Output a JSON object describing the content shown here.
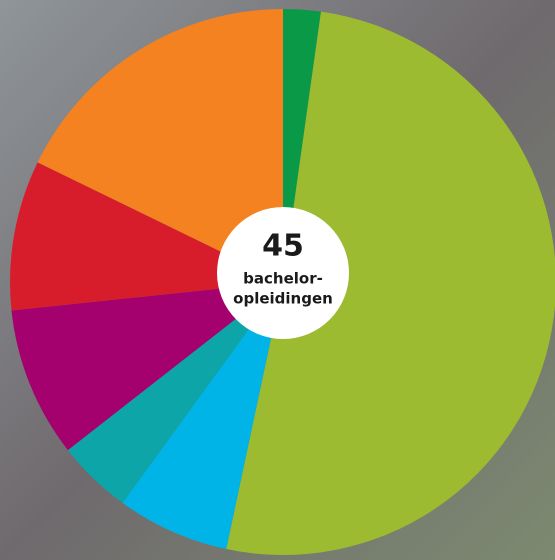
{
  "chart_data": {
    "type": "pie",
    "center_number": "45",
    "center_caption": [
      "bachelor-",
      "opleidingen"
    ],
    "values": [
      1,
      23,
      3,
      2,
      4,
      4,
      8
    ],
    "colors": [
      "#0a9a47",
      "#9dbb31",
      "#00b4e8",
      "#0da5a8",
      "#a4006e",
      "#d71d2b",
      "#f58220"
    ],
    "start_angle": 0,
    "direction": "clockwise"
  }
}
